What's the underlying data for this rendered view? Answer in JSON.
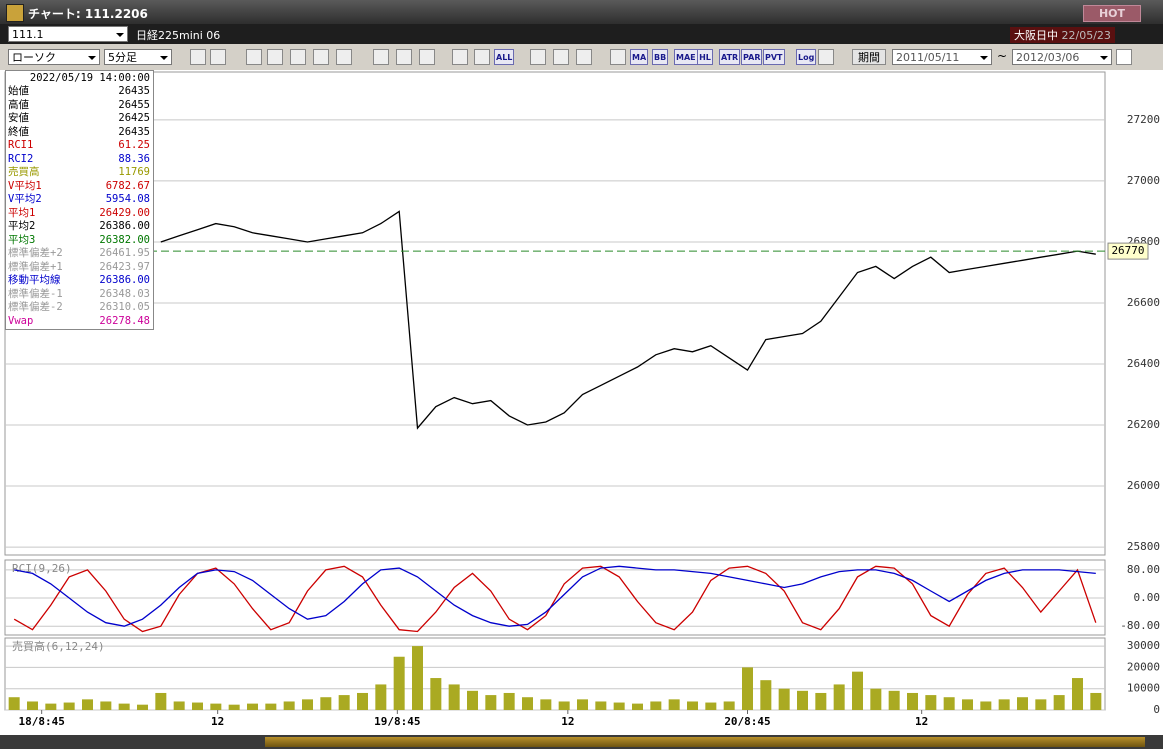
{
  "window": {
    "title": "チャート: 111.2206",
    "hot": "HOT"
  },
  "header": {
    "symbol": "111.1",
    "name": "日経225mini 06",
    "market": "大阪日中",
    "date": "22/05/23"
  },
  "toolbar": {
    "chart_type": "ローソク",
    "interval": "5分足",
    "buttons": [
      "ALL",
      "MA",
      "BB",
      "MAE",
      "HL",
      "ATR",
      "PAR",
      "PVT",
      "Log"
    ],
    "period_label": "期間",
    "from": "2011/05/11",
    "tilde": "~",
    "to": "2012/03/06"
  },
  "info_panel": {
    "datetime": "2022/05/19 14:00:00",
    "rows": [
      {
        "label": "始値",
        "value": "26435",
        "color": "#000000"
      },
      {
        "label": "高値",
        "value": "26455",
        "color": "#000000"
      },
      {
        "label": "安値",
        "value": "26425",
        "color": "#000000"
      },
      {
        "label": "終値",
        "value": "26435",
        "color": "#000000"
      },
      {
        "label": "RCI1",
        "value": "61.25",
        "color": "#cc0000"
      },
      {
        "label": "RCI2",
        "value": "88.36",
        "color": "#0000cc"
      },
      {
        "label": "売買高",
        "value": "11769",
        "color": "#999900"
      },
      {
        "label": "V平均1",
        "value": "6782.67",
        "color": "#cc0000"
      },
      {
        "label": "V平均2",
        "value": "5954.08",
        "color": "#0000cc"
      },
      {
        "label": "平均1",
        "value": "26429.00",
        "color": "#cc0000"
      },
      {
        "label": "平均2",
        "value": "26386.00",
        "color": "#000000"
      },
      {
        "label": "平均3",
        "value": "26382.00",
        "color": "#007700"
      },
      {
        "label": "標準偏差+2",
        "value": "26461.95",
        "color": "#999999"
      },
      {
        "label": "標準偏差+1",
        "value": "26423.97",
        "color": "#999999"
      },
      {
        "label": "移動平均線",
        "value": "26386.00",
        "color": "#0000cc"
      },
      {
        "label": "標準偏差-1",
        "value": "26348.03",
        "color": "#999999"
      },
      {
        "label": "標準偏差-2",
        "value": "26310.05",
        "color": "#999999"
      },
      {
        "label": "Vwap",
        "value": "26278.48",
        "color": "#cc0099"
      }
    ]
  },
  "chart_data": [
    {
      "type": "line",
      "xlim": [
        0,
        60
      ],
      "ylim": [
        25774,
        27357
      ],
      "yticks": [
        25800,
        26000,
        26200,
        26400,
        26600,
        26800,
        27000,
        27200
      ],
      "grid": true,
      "last_price": 26770,
      "last_price_color": "#2a8a2a",
      "series": [
        {
          "name": "終値",
          "color": "#000000",
          "values": [
            null,
            null,
            null,
            null,
            null,
            null,
            null,
            null,
            26800,
            26820,
            26840,
            26860,
            26850,
            26830,
            26820,
            26810,
            26800,
            26810,
            26820,
            26830,
            26860,
            26900,
            26190,
            26260,
            26290,
            26270,
            26280,
            26230,
            26200,
            26210,
            26240,
            26300,
            26330,
            26360,
            26390,
            26430,
            26450,
            26440,
            26460,
            26420,
            26380,
            26480,
            26490,
            26500,
            26540,
            26620,
            26700,
            26720,
            26680,
            26720,
            26750,
            26700,
            26710,
            26720,
            26730,
            26740,
            26750,
            26760,
            26770,
            26760
          ]
        }
      ]
    },
    {
      "type": "line",
      "title": "RCI(9,26)",
      "xlim": [
        0,
        60
      ],
      "ylim": [
        -105,
        108
      ],
      "yticks": [
        {
          "value": 80,
          "label": "80.00"
        },
        {
          "value": 0,
          "label": "0.00"
        },
        {
          "value": -80,
          "label": "-80.00"
        }
      ],
      "grid": true,
      "series": [
        {
          "name": "RCI1",
          "color": "#cc0000",
          "values": [
            -60,
            -90,
            -20,
            60,
            80,
            20,
            -60,
            -95,
            -80,
            10,
            70,
            85,
            40,
            -30,
            -90,
            -70,
            20,
            80,
            90,
            60,
            -20,
            -90,
            -95,
            -40,
            30,
            70,
            20,
            -60,
            -90,
            -50,
            40,
            85,
            90,
            60,
            -10,
            -70,
            -90,
            -40,
            50,
            85,
            90,
            70,
            20,
            -70,
            -90,
            -30,
            60,
            90,
            85,
            40,
            -50,
            -80,
            10,
            70,
            85,
            30,
            -40,
            20,
            80,
            -70
          ]
        },
        {
          "name": "RCI2",
          "color": "#0000cc",
          "values": [
            80,
            70,
            40,
            0,
            -40,
            -70,
            -80,
            -60,
            -20,
            30,
            70,
            80,
            75,
            50,
            10,
            -30,
            -60,
            -50,
            -10,
            40,
            80,
            85,
            60,
            20,
            -20,
            -50,
            -70,
            -80,
            -75,
            -40,
            10,
            60,
            85,
            90,
            85,
            80,
            80,
            75,
            70,
            60,
            50,
            40,
            30,
            40,
            60,
            75,
            80,
            80,
            70,
            50,
            20,
            -10,
            20,
            50,
            70,
            80,
            80,
            80,
            75,
            70
          ]
        }
      ]
    },
    {
      "type": "bar",
      "title": "売買高(6,12,24)",
      "xlim": [
        0,
        60
      ],
      "ylim": [
        0,
        33800
      ],
      "yticks": [
        0,
        10000,
        20000,
        30000
      ],
      "grid": true,
      "color": "#aaaa22",
      "values": [
        6000,
        4000,
        3000,
        3500,
        5000,
        4000,
        3000,
        2500,
        8000,
        4000,
        3500,
        3000,
        2500,
        3000,
        3000,
        4000,
        5000,
        6000,
        7000,
        8000,
        12000,
        25000,
        30000,
        15000,
        12000,
        9000,
        7000,
        8000,
        6000,
        5000,
        4000,
        5000,
        4000,
        3500,
        3000,
        4000,
        5000,
        4000,
        3500,
        4000,
        20000,
        14000,
        10000,
        9000,
        8000,
        12000,
        18000,
        10000,
        9000,
        8000,
        7000,
        6000,
        5000,
        4000,
        5000,
        6000,
        5000,
        7000,
        15000,
        8000
      ],
      "xticks": [
        {
          "value": 2,
          "label": "18/8:45"
        },
        {
          "value": 11.6,
          "label": "12"
        },
        {
          "value": 21.4,
          "label": "19/8:45"
        },
        {
          "value": 30.7,
          "label": "12"
        },
        {
          "value": 40.5,
          "label": "20/8:45"
        },
        {
          "value": 50,
          "label": "12"
        }
      ]
    }
  ]
}
